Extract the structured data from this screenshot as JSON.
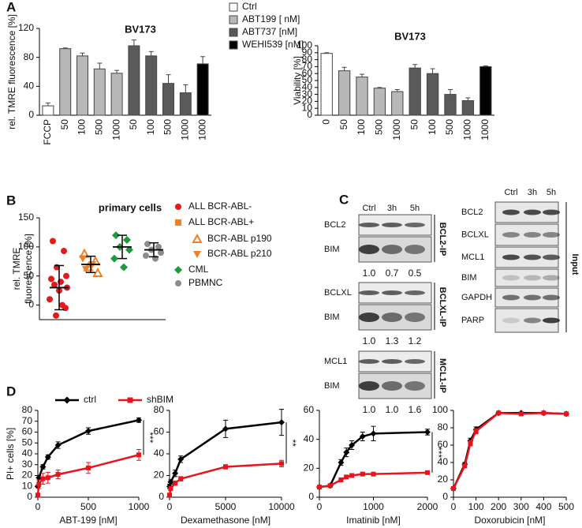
{
  "chart_data": [
    {
      "type": "bar",
      "label": "A",
      "title": "BV173",
      "ylabel": "rel. TMRE fluorescence [%]",
      "categories": [
        "FCCP",
        "50",
        "100",
        "500",
        "1000",
        "50",
        "100",
        "500",
        "1000",
        "1000"
      ],
      "values": [
        13,
        92,
        82,
        64,
        58,
        96,
        82,
        44,
        31,
        71
      ],
      "errors": [
        4,
        1,
        4,
        8,
        4,
        8,
        6,
        12,
        11,
        10
      ],
      "colors": [
        "#ffffff",
        "#b8b8b8",
        "#b8b8b8",
        "#b8b8b8",
        "#b8b8b8",
        "#5a5a5a",
        "#5a5a5a",
        "#5a5a5a",
        "#5a5a5a",
        "#000000"
      ],
      "ylim": [
        0,
        120
      ],
      "yticks": [
        0,
        40,
        80,
        120
      ],
      "legend": [
        {
          "name": "Ctrl",
          "color": "#ffffff"
        },
        {
          "name": "ABT199 [ nM]",
          "color": "#b8b8b8"
        },
        {
          "name": "ABT737 [nM]",
          "color": "#5a5a5a"
        },
        {
          "name": "WEHI539 [nM]",
          "color": "#000000"
        }
      ]
    },
    {
      "type": "bar",
      "title": "BV173",
      "ylabel": "Viability [%]",
      "categories": [
        "0",
        "50",
        "100",
        "500",
        "1000",
        "50",
        "100",
        "500",
        "1000",
        "1000"
      ],
      "values": [
        89,
        64,
        55,
        39,
        34,
        68,
        60,
        30,
        21,
        70
      ],
      "errors": [
        1,
        5,
        4,
        1,
        3,
        5,
        7,
        7,
        4,
        1
      ],
      "colors": [
        "#ffffff",
        "#b8b8b8",
        "#b8b8b8",
        "#b8b8b8",
        "#b8b8b8",
        "#5a5a5a",
        "#5a5a5a",
        "#5a5a5a",
        "#5a5a5a",
        "#000000"
      ],
      "ylim": [
        0,
        100
      ],
      "yticks": [
        0,
        10,
        20,
        30,
        40,
        50,
        60,
        70,
        80,
        90,
        100
      ]
    },
    {
      "type": "dotplot",
      "label": "B",
      "title": "primary cells",
      "ylabel": [
        "rel. TMRE",
        "fluorescence [%]"
      ],
      "ylim": [
        -25,
        150
      ],
      "yticks": [
        0,
        50,
        100,
        150
      ],
      "series": [
        {
          "name": "ALL BCR-ABL-",
          "color": "#e31a1c",
          "marker": "circle",
          "group": 1,
          "values": [
            110,
            93,
            65,
            50,
            45,
            40,
            35,
            30,
            25,
            10,
            0,
            -5,
            -18
          ]
        },
        {
          "name": "ALL BCR-ABL+",
          "color": "#f07f27",
          "marker": "square",
          "group": 2,
          "values": []
        },
        {
          "name": "BCR-ABL p190",
          "color": "#f07f27",
          "marker": "triangle-open",
          "group": 2,
          "values": [
            88,
            75,
            65,
            55
          ]
        },
        {
          "name": "BCR-ABL p210",
          "color": "#f07f27",
          "marker": "triangle-down",
          "group": 2,
          "values": [
            80,
            70,
            62
          ]
        },
        {
          "name": "CML",
          "color": "#1e9a3c",
          "marker": "diamond",
          "group": 3,
          "values": [
            120,
            112,
            100,
            95,
            80,
            65
          ]
        },
        {
          "name": "PBMNC",
          "color": "#8c8c8c",
          "marker": "circle",
          "group": 4,
          "values": [
            105,
            100,
            95,
            90,
            85,
            80
          ]
        }
      ],
      "stats": [
        {
          "mean": 30,
          "sd": 38
        },
        {
          "mean": 70,
          "sd": 14
        },
        {
          "mean": 100,
          "sd": 20
        },
        {
          "mean": 95,
          "sd": 12
        }
      ]
    },
    {
      "type": "blot",
      "label": "C",
      "lanes": [
        "Ctrl",
        "3h",
        "5h"
      ],
      "ip_panels": [
        {
          "name": "BCL2-IP",
          "rows": [
            "BCL2",
            "BIM"
          ],
          "ratios": [
            "1.0",
            "0.7",
            "0.5"
          ]
        },
        {
          "name": "BCLXL-IP",
          "rows": [
            "BCLXL",
            "BIM"
          ],
          "ratios": [
            "1.0",
            "1.3",
            "1.2"
          ]
        },
        {
          "name": "MCL1-IP",
          "rows": [
            "MCL1",
            "BIM"
          ],
          "ratios": [
            "1.0",
            "1.0",
            "1.6"
          ]
        }
      ],
      "input": {
        "name": "Input",
        "rows": [
          "BCL2",
          "BCLXL",
          "MCL1",
          "BIM",
          "GAPDH",
          "PARP"
        ]
      }
    },
    {
      "type": "line",
      "label": "D",
      "ylabel": "PI+ cells [%]",
      "xlabel": "ABT-199 [nM]",
      "x": [
        0,
        10,
        50,
        100,
        200,
        500,
        1000
      ],
      "xlim": [
        0,
        1000
      ],
      "xticks": [
        0,
        500,
        1000
      ],
      "ylim": [
        0,
        80
      ],
      "yticks": [
        0,
        10,
        20,
        30,
        40,
        50,
        60,
        70,
        80
      ],
      "significance": "***",
      "series": [
        {
          "name": "ctrl",
          "color": "#000000",
          "marker": "diamond",
          "values": [
            10,
            18,
            28,
            37,
            48,
            61,
            71
          ],
          "errors": [
            1,
            2,
            2,
            2,
            3,
            3,
            2
          ]
        },
        {
          "name": "shBIM",
          "color": "#e8141c",
          "marker": "square",
          "values": [
            2,
            12,
            17,
            18,
            21,
            27,
            39
          ],
          "errors": [
            1,
            4,
            5,
            5,
            4,
            5,
            5
          ]
        }
      ]
    },
    {
      "type": "line",
      "xlabel": "Dexamethasone [nM]",
      "x": [
        0,
        100,
        500,
        1000,
        5000,
        10000
      ],
      "xlim": [
        0,
        10000
      ],
      "xticks": [
        0,
        5000,
        10000
      ],
      "ylim": [
        0,
        80
      ],
      "yticks": [
        0,
        20,
        40,
        60,
        80
      ],
      "significance": "**",
      "series": [
        {
          "color": "#000000",
          "marker": "diamond",
          "values": [
            10,
            14,
            22,
            35,
            63,
            69
          ],
          "errors": [
            2,
            2,
            3,
            3,
            8,
            12
          ]
        },
        {
          "color": "#e8141c",
          "marker": "square",
          "values": [
            2,
            8,
            13,
            17,
            28,
            31
          ],
          "errors": [
            1,
            2,
            2,
            2,
            2,
            3
          ]
        }
      ]
    },
    {
      "type": "line",
      "xlabel": "Imatinib [nM]",
      "x": [
        0,
        200,
        400,
        500,
        600,
        800,
        1000,
        2000
      ],
      "xlim": [
        0,
        2000
      ],
      "xticks": [
        0,
        1000,
        2000
      ],
      "ylim": [
        0,
        60
      ],
      "yticks": [
        0,
        20,
        40,
        60
      ],
      "significance": "***",
      "series": [
        {
          "color": "#000000",
          "marker": "diamond",
          "values": [
            7,
            8,
            24,
            31,
            36,
            42,
            44,
            45
          ],
          "errors": [
            1,
            1,
            2,
            3,
            3,
            3,
            5,
            2
          ]
        },
        {
          "color": "#e8141c",
          "marker": "square",
          "values": [
            7,
            8,
            12,
            14,
            15,
            16,
            16,
            17
          ],
          "errors": [
            1,
            1,
            1,
            1,
            1,
            1,
            1,
            1
          ]
        }
      ]
    },
    {
      "type": "line",
      "xlabel": "Doxorubicin [nM]",
      "x": [
        0,
        50,
        75,
        100,
        200,
        300,
        400,
        500
      ],
      "xlim": [
        0,
        500
      ],
      "xticks": [
        0,
        100,
        200,
        300,
        400,
        500
      ],
      "ylim": [
        0,
        100
      ],
      "yticks": [
        0,
        20,
        40,
        60,
        80,
        100
      ],
      "series": [
        {
          "color": "#000000",
          "marker": "diamond",
          "values": [
            10,
            38,
            65,
            78,
            97,
            97,
            97,
            96
          ],
          "errors": [
            1,
            2,
            3,
            3,
            1,
            1,
            1,
            1
          ]
        },
        {
          "color": "#e8141c",
          "marker": "square",
          "values": [
            10,
            36,
            62,
            76,
            97,
            96,
            97,
            96
          ],
          "errors": [
            1,
            2,
            3,
            3,
            1,
            1,
            1,
            1
          ]
        }
      ]
    }
  ]
}
